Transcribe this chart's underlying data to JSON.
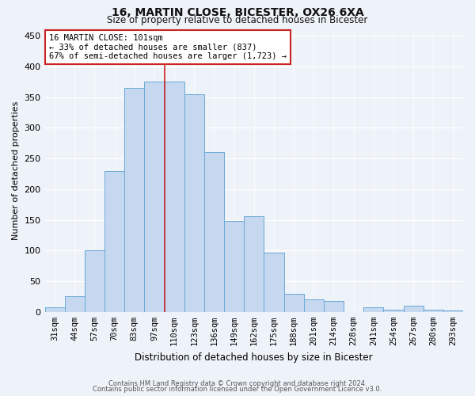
{
  "title1": "16, MARTIN CLOSE, BICESTER, OX26 6XA",
  "title2": "Size of property relative to detached houses in Bicester",
  "xlabel": "Distribution of detached houses by size in Bicester",
  "ylabel": "Number of detached properties",
  "footer1": "Contains HM Land Registry data © Crown copyright and database right 2024.",
  "footer2": "Contains public sector information licensed under the Open Government Licence v3.0.",
  "annotation_line1": "16 MARTIN CLOSE: 101sqm",
  "annotation_line2": "← 33% of detached houses are smaller (837)",
  "annotation_line3": "67% of semi-detached houses are larger (1,723) →",
  "bar_labels": [
    "31sqm",
    "44sqm",
    "57sqm",
    "70sqm",
    "83sqm",
    "97sqm",
    "110sqm",
    "123sqm",
    "136sqm",
    "149sqm",
    "162sqm",
    "175sqm",
    "188sqm",
    "201sqm",
    "214sqm",
    "228sqm",
    "241sqm",
    "254sqm",
    "267sqm",
    "280sqm",
    "293sqm"
  ],
  "bar_values": [
    7,
    25,
    100,
    230,
    365,
    375,
    375,
    355,
    260,
    148,
    156,
    96,
    30,
    20,
    18,
    0,
    8,
    3,
    10,
    3,
    2
  ],
  "bar_color": "#c5d8f0",
  "bar_edge_color": "#6aaad4",
  "vline_color": "#cc2222",
  "vline_x": 5.5,
  "annotation_box_color": "#cc2222",
  "annotation_bg": "#ffffff",
  "ylim": [
    0,
    460
  ],
  "yticks": [
    0,
    50,
    100,
    150,
    200,
    250,
    300,
    350,
    400,
    450
  ],
  "bg_color": "#eef2f9",
  "plot_bg": "#eef2f9",
  "title1_fontsize": 10,
  "title2_fontsize": 8.5,
  "ylabel_fontsize": 8,
  "xlabel_fontsize": 8.5,
  "tick_fontsize": 7.5,
  "ytick_fontsize": 8,
  "footer_fontsize": 6,
  "ann_fontsize": 7.5
}
